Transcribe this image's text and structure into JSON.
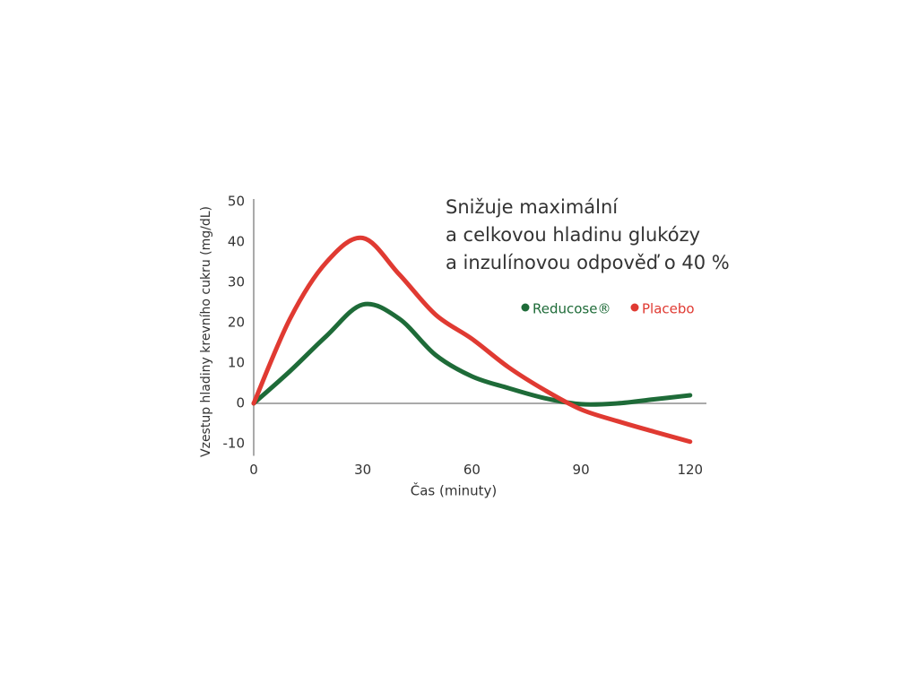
{
  "chart_data": {
    "type": "line",
    "title_lines": [
      "Snižuje maximální",
      "a celkovou hladinu glukózy",
      "a inzulínovou odpověď o 40 %"
    ],
    "x_label": "Čas  (minuty)",
    "y_label": "Vzestup hladiny krevního cukru  (mg/dL)",
    "x": [
      0,
      10,
      20,
      30,
      40,
      50,
      60,
      70,
      80,
      90,
      100,
      110,
      120
    ],
    "series": [
      {
        "name": "Reducose®",
        "color": "#1e6b38",
        "values": [
          0,
          8,
          16.7,
          24.5,
          21,
          12,
          6.7,
          3.8,
          1.3,
          -0.2,
          0,
          1,
          2
        ]
      },
      {
        "name": "Placebo",
        "color": "#e03a32",
        "values": [
          0,
          21,
          35,
          41,
          32,
          22,
          16,
          9,
          3.3,
          -1.5,
          -4.4,
          -7,
          -9.5
        ]
      }
    ],
    "xlim": [
      0,
      124
    ],
    "ylim": [
      -13,
      50
    ],
    "xticks": [
      0,
      30,
      60,
      90,
      120
    ],
    "yticks": [
      -10,
      0,
      10,
      20,
      30,
      40,
      50
    ],
    "grid": false
  }
}
